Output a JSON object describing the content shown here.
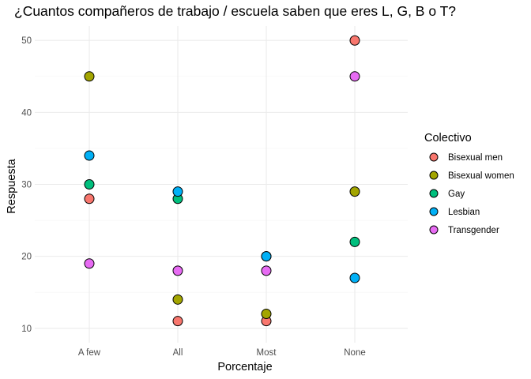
{
  "chart_data": {
    "type": "scatter",
    "title": "¿Cuantos compañeros de trabajo / escuela saben que eres L, G, B o T?",
    "xlabel": "Porcentaje",
    "ylabel": "Respuesta",
    "categories": [
      "A few",
      "All",
      "Most",
      "None"
    ],
    "ylim": [
      8,
      52
    ],
    "yticks": [
      10,
      20,
      30,
      40,
      50
    ],
    "grid": true,
    "legend": {
      "title": "Colectivo",
      "placement": "right"
    },
    "series": [
      {
        "name": "Bisexual men",
        "color": "#F8766D",
        "values": [
          28,
          11,
          11,
          50
        ]
      },
      {
        "name": "Bisexual women",
        "color": "#A3A500",
        "values": [
          45,
          14,
          12,
          29
        ]
      },
      {
        "name": "Gay",
        "color": "#00BF7D",
        "values": [
          30,
          28,
          20,
          22
        ]
      },
      {
        "name": "Lesbian",
        "color": "#00B0F6",
        "values": [
          34,
          29,
          20,
          17
        ]
      },
      {
        "name": "Transgender",
        "color": "#E76BF3",
        "values": [
          19,
          18,
          18,
          45
        ]
      }
    ]
  }
}
